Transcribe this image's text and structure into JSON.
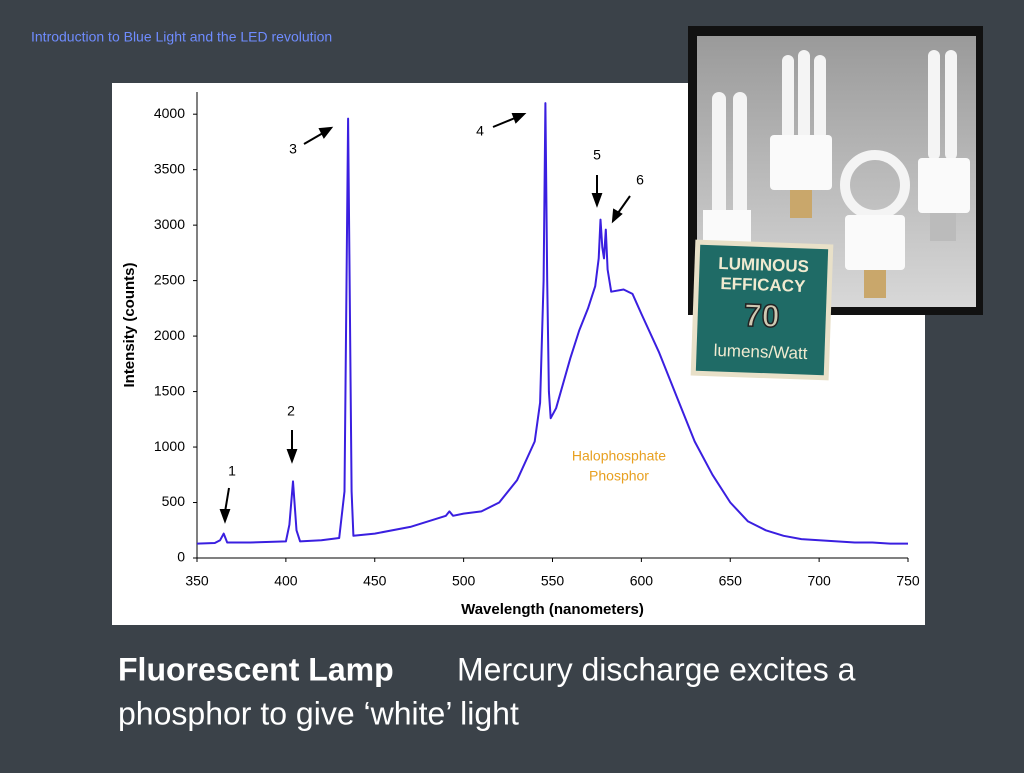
{
  "header": "Introduction to Blue Light and the LED revolution",
  "chart_data": {
    "type": "line",
    "x_label": "Wavelength (nanometers)",
    "y_label": "Intensity (counts)",
    "x": [
      350,
      360,
      363,
      365,
      367,
      380,
      400,
      402,
      404,
      406,
      408,
      420,
      430,
      433,
      435,
      437,
      438,
      450,
      470,
      490,
      492,
      494,
      500,
      510,
      520,
      530,
      540,
      543,
      545,
      546,
      547,
      548,
      549,
      552,
      560,
      565,
      570,
      574,
      576,
      577,
      578,
      579,
      580,
      581,
      583,
      590,
      595,
      600,
      610,
      620,
      630,
      640,
      650,
      660,
      670,
      680,
      690,
      700,
      710,
      720,
      730,
      740,
      750
    ],
    "values": [
      130,
      135,
      160,
      220,
      140,
      140,
      150,
      300,
      690,
      250,
      150,
      160,
      180,
      600,
      3960,
      600,
      200,
      220,
      280,
      380,
      420,
      380,
      400,
      420,
      500,
      700,
      1050,
      1400,
      2500,
      4100,
      2500,
      1500,
      1260,
      1350,
      1800,
      2050,
      2250,
      2450,
      2700,
      3050,
      2800,
      2700,
      2960,
      2600,
      2400,
      2420,
      2380,
      2200,
      1850,
      1450,
      1050,
      750,
      500,
      330,
      250,
      200,
      170,
      160,
      150,
      140,
      140,
      130,
      130
    ],
    "color": "#3a1fe0",
    "xlim": [
      350,
      750
    ],
    "xticks": [
      350,
      400,
      450,
      500,
      550,
      600,
      650,
      700,
      750
    ],
    "ylim": [
      0,
      4200
    ],
    "yticks": [
      0,
      500,
      1000,
      1500,
      2000,
      2500,
      3000,
      3500,
      4000
    ],
    "annotations": [
      "1",
      "2",
      "3",
      "4",
      "5",
      "6",
      "Halophosphate",
      "Phosphor"
    ]
  },
  "badge": {
    "line1": "LUMINOUS",
    "line2": "EFFICACY",
    "number": "70",
    "unit": "lumens/Watt"
  },
  "caption": {
    "title": "Fluorescent Lamp",
    "line1": "Mercury discharge excites a",
    "line2": "phosphor to give ‘white’ light"
  }
}
